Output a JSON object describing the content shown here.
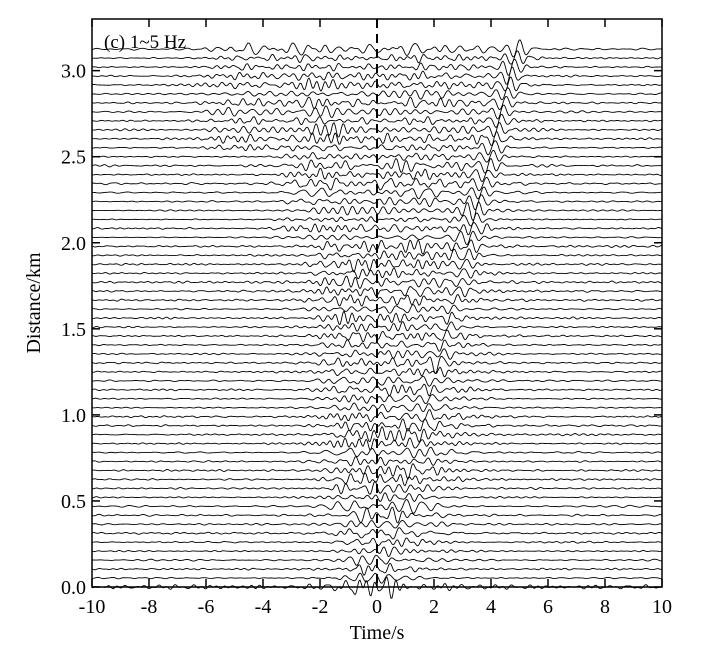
{
  "chart_data": {
    "type": "line",
    "panel_label": "(c) 1~5 Hz",
    "xlabel": "Time/s",
    "ylabel": "Distance/km",
    "xlim": [
      -10,
      10
    ],
    "ylim": [
      0,
      3.3
    ],
    "x_ticks": [
      -10,
      -8,
      -6,
      -4,
      -2,
      0,
      2,
      4,
      6,
      8,
      10
    ],
    "y_ticks": [
      "0.0",
      "0.5",
      "1.0",
      "1.5",
      "2.0",
      "2.5",
      "3.0"
    ],
    "y_tick_values": [
      0,
      0.5,
      1.0,
      1.5,
      2.0,
      2.5,
      3.0
    ],
    "reference_line_time": 0,
    "trace_distance_start": 0.0,
    "trace_distance_end": 3.125,
    "trace_count": 61,
    "main_arrival_slope_s_per_km": 1.5,
    "grid": false,
    "line_color": "#000000"
  }
}
